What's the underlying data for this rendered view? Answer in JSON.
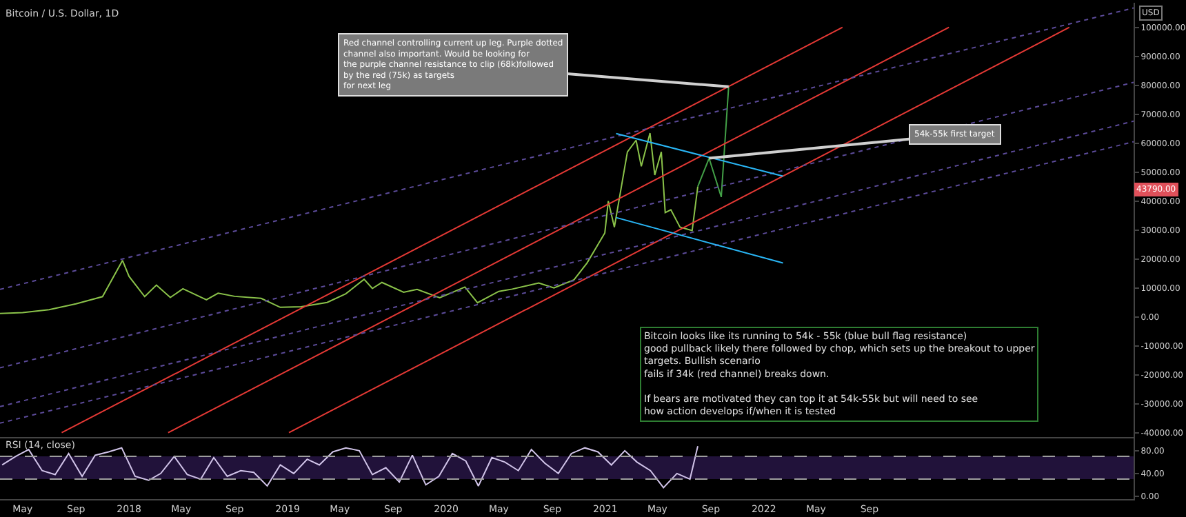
{
  "chart_data": [
    {
      "type": "line",
      "title": "Bitcoin / U.S. Dollar, 1D",
      "ylabel": "USD",
      "tick_labels": "y",
      "grid": false,
      "marker": "none",
      "xlim": [
        "2017-03-10",
        "2024-05-01"
      ],
      "ylim": [
        -41500,
        108500
      ],
      "yticks": [
        {
          "value": -40000,
          "label": "-40000.00"
        },
        {
          "value": -30000,
          "label": "-30000.00"
        },
        {
          "value": -20000,
          "label": "-20000.00"
        },
        {
          "value": -10000,
          "label": "-10000.00"
        },
        {
          "value": 0,
          "label": "0.00"
        },
        {
          "value": 10000,
          "label": "10000.00"
        },
        {
          "value": 20000,
          "label": "20000.00"
        },
        {
          "value": 30000,
          "label": "30000.00"
        },
        {
          "value": 40000,
          "label": "40000.00"
        },
        {
          "value": 50000,
          "label": "50000.00"
        },
        {
          "value": 60000,
          "label": "60000.00"
        },
        {
          "value": 70000,
          "label": "70000.00"
        },
        {
          "value": 80000,
          "label": "80000.00"
        },
        {
          "value": 90000,
          "label": "90000.00"
        },
        {
          "value": 100000,
          "label": "100000.00"
        }
      ],
      "series": [
        {
          "color": "#8bc34a",
          "line_style": "solid",
          "x": [
            "2017-03-10",
            "2017-05-01",
            "2017-07-01",
            "2017-09-01",
            "2017-11-01",
            "2017-12-17",
            "2018-01-01",
            "2018-02-06",
            "2018-03-05",
            "2018-04-06",
            "2018-05-05",
            "2018-06-28",
            "2018-07-25",
            "2018-09-01",
            "2018-11-01",
            "2018-12-15",
            "2019-02-01",
            "2019-04-02",
            "2019-05-15",
            "2019-06-26",
            "2019-07-15",
            "2019-08-06",
            "2019-09-25",
            "2019-10-26",
            "2019-12-17",
            "2020-02-13",
            "2020-03-13",
            "2020-05-01",
            "2020-06-01",
            "2020-08-01",
            "2020-09-05",
            "2020-10-21",
            "2020-11-20",
            "2020-12-31",
            "2021-01-08",
            "2021-01-22",
            "2021-02-21",
            "2021-03-13",
            "2021-03-25",
            "2021-04-14",
            "2021-04-25",
            "2021-05-10",
            "2021-05-19",
            "2021-06-01",
            "2021-06-22",
            "2021-07-20",
            "2021-08-02"
          ],
          "values": [
            1200,
            1500,
            2500,
            4500,
            7000,
            19500,
            14000,
            7000,
            11000,
            6700,
            9700,
            5900,
            8200,
            7100,
            6400,
            3300,
            3500,
            5000,
            8000,
            13000,
            9800,
            11900,
            8500,
            9500,
            6600,
            10300,
            4900,
            8800,
            9600,
            11700,
            10000,
            12800,
            18600,
            29000,
            40000,
            31000,
            57000,
            61000,
            52000,
            63500,
            49000,
            57000,
            36000,
            37000,
            31000,
            29800,
            45000
          ]
        },
        {
          "color": "#43a047",
          "line_style": "solid",
          "x": [
            "2021-08-02",
            "2021-08-28",
            "2021-09-25",
            "2021-10-12"
          ],
          "values": [
            45000,
            54800,
            41400,
            79500
          ]
        },
        {
          "color": "#e53935",
          "line_style": "solid",
          "x": [
            "2017-07-30",
            "2022-07-01"
          ],
          "values": [
            -40000,
            100000
          ]
        },
        {
          "color": "#e53935",
          "line_style": "solid",
          "x": [
            "2018-04-01",
            "2023-03-03"
          ],
          "values": [
            -40000,
            100000
          ]
        },
        {
          "color": "#e53935",
          "line_style": "solid",
          "x": [
            "2019-01-04",
            "2023-12-05"
          ],
          "values": [
            -40000,
            100000
          ]
        },
        {
          "color": "#5c4b9a",
          "line_style": "dotted",
          "x": [
            "2017-03-10",
            "2024-05-01"
          ],
          "values": [
            9500,
            106700
          ]
        },
        {
          "color": "#5c4b9a",
          "line_style": "dotted",
          "x": [
            "2017-03-10",
            "2024-05-01"
          ],
          "values": [
            -17600,
            81000
          ]
        },
        {
          "color": "#5c4b9a",
          "line_style": "dotted",
          "x": [
            "2017-03-10",
            "2024-05-01"
          ],
          "values": [
            -31000,
            67600
          ]
        },
        {
          "color": "#5c4b9a",
          "line_style": "dotted",
          "x": [
            "2017-03-10",
            "2024-05-01"
          ],
          "values": [
            -36700,
            60500
          ]
        },
        {
          "color": "#29b6f6",
          "line_style": "solid",
          "x": [
            "2021-01-26",
            "2022-02-14"
          ],
          "values": [
            63300,
            48600
          ]
        },
        {
          "color": "#29b6f6",
          "line_style": "solid",
          "x": [
            "2021-01-26",
            "2022-02-14"
          ],
          "values": [
            34300,
            18600
          ]
        }
      ],
      "annotations": [
        {
          "text": "Red channel controlling current up leg. Purple dotted\nchannel also important. Would be looking for\nthe purple channel resistance to clip (68k)followed\nby the red (75k) as targets\nfor next leg",
          "x": "2021-10-12",
          "y": 79500
        },
        {
          "text": "54k-55k first target",
          "x": "2021-08-28",
          "y": 54800
        },
        "Bitcoin looks like its running to 54k - 55k (blue bull flag resistance)\ngood pullback likely there followed by chop, which sets up the breakout to upper\ntargets. Bullish scenario\nfails if 34k (red channel) breaks down.\n\nIf bears are motivated they can top it at 54k-55k but will need to see\nhow action develops if/when it is tested",
        {
          "text": "43790.00",
          "y": 43790
        }
      ]
    },
    {
      "type": "line",
      "title": "RSI (14, close)",
      "grid": false,
      "marker": "none",
      "xlim": [
        "2017-03-10",
        "2024-05-01"
      ],
      "xticks": [
        {
          "value": "2017-05-01",
          "label": "May"
        },
        {
          "value": "2017-09-01",
          "label": "Sep"
        },
        {
          "value": "2018-01-01",
          "label": "2018"
        },
        {
          "value": "2018-05-01",
          "label": "May"
        },
        {
          "value": "2018-09-01",
          "label": "Sep"
        },
        {
          "value": "2019-01-01",
          "label": "2019"
        },
        {
          "value": "2019-05-01",
          "label": "May"
        },
        {
          "value": "2019-09-01",
          "label": "Sep"
        },
        {
          "value": "2020-01-01",
          "label": "2020"
        },
        {
          "value": "2020-05-01",
          "label": "May"
        },
        {
          "value": "2020-09-01",
          "label": "Sep"
        },
        {
          "value": "2021-01-01",
          "label": "2021"
        },
        {
          "value": "2021-05-01",
          "label": "May"
        },
        {
          "value": "2021-09-01",
          "label": "Sep"
        },
        {
          "value": "2022-01-01",
          "label": "2022"
        },
        {
          "value": "2022-05-01",
          "label": "May"
        },
        {
          "value": "2022-09-01",
          "label": "Sep"
        }
      ],
      "ylim": [
        -5,
        104
      ],
      "yticks": [
        {
          "value": 0,
          "label": "0.00"
        },
        {
          "value": 40,
          "label": "40.00"
        },
        {
          "value": 80,
          "label": "80.00"
        }
      ],
      "ref_lines": [
        {
          "axis": "y",
          "value": 70,
          "line_style": "dashed",
          "color": "#9e9e9e"
        },
        {
          "axis": "y",
          "value": 30,
          "line_style": "dashed",
          "color": "#9e9e9e"
        }
      ],
      "bands": [
        {
          "axis": "y",
          "from": 30,
          "to": 70,
          "color": "#21123a"
        }
      ],
      "series": [
        {
          "color": "#d1c4e9",
          "line_style": "solid",
          "x": [
            "2017-03-15",
            "2017-04-15",
            "2017-05-15",
            "2017-06-15",
            "2017-07-15",
            "2017-08-15",
            "2017-09-15",
            "2017-10-15",
            "2017-11-15",
            "2017-12-15",
            "2018-01-15",
            "2018-02-15",
            "2018-03-15",
            "2018-04-15",
            "2018-05-15",
            "2018-06-15",
            "2018-07-15",
            "2018-08-15",
            "2018-09-15",
            "2018-10-15",
            "2018-11-15",
            "2018-12-15",
            "2019-01-15",
            "2019-02-15",
            "2019-03-15",
            "2019-04-15",
            "2019-05-15",
            "2019-06-15",
            "2019-07-15",
            "2019-08-15",
            "2019-09-15",
            "2019-10-15",
            "2019-11-15",
            "2019-12-15",
            "2020-01-15",
            "2020-02-15",
            "2020-03-15",
            "2020-04-15",
            "2020-05-15",
            "2020-06-15",
            "2020-07-15",
            "2020-08-15",
            "2020-09-15",
            "2020-10-15",
            "2020-11-15",
            "2020-12-15",
            "2021-01-15",
            "2021-02-15",
            "2021-03-15",
            "2021-04-15",
            "2021-05-15",
            "2021-06-15",
            "2021-07-15",
            "2021-08-02"
          ],
          "values": [
            55,
            70,
            82,
            45,
            38,
            75,
            35,
            72,
            78,
            85,
            35,
            28,
            40,
            70,
            38,
            30,
            68,
            35,
            45,
            42,
            18,
            55,
            40,
            65,
            55,
            78,
            85,
            80,
            38,
            50,
            25,
            72,
            20,
            35,
            75,
            62,
            18,
            68,
            60,
            45,
            82,
            58,
            40,
            75,
            85,
            78,
            55,
            80,
            60,
            45,
            15,
            40,
            30,
            88
          ]
        }
      ]
    }
  ]
}
